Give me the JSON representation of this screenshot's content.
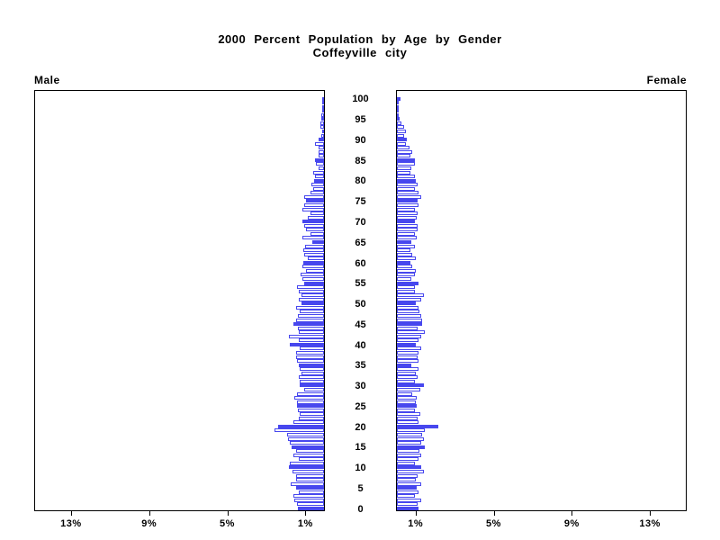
{
  "title": "2000 Percent Population by Age by Gender",
  "subtitle": "Coffeyville city",
  "left_panel_label": "Male",
  "right_panel_label": "Female",
  "colors": {
    "bar_outline": "#4747ee",
    "bar_fill_default": "#ffffff",
    "bar_fill_milestone": "#4747ee",
    "frame": "#000000",
    "text": "#000000",
    "background": "#ffffff"
  },
  "chart_data": {
    "type": "bar",
    "variant": "population-pyramid",
    "title": "2000 Percent Population by Age by Gender",
    "subtitle": "Coffeyville city",
    "orientation": "horizontal-mirrored",
    "unit": "percent of population",
    "age_min": 0,
    "age_max": 100,
    "age_tick_interval": 5,
    "age_tick_values": [
      0,
      5,
      10,
      15,
      20,
      25,
      30,
      35,
      40,
      45,
      50,
      55,
      60,
      65,
      70,
      75,
      80,
      85,
      90,
      95,
      100
    ],
    "x_axis": {
      "tick_values": [
        1,
        5,
        9,
        13
      ],
      "tick_labels": [
        "1%",
        "5%",
        "9%",
        "13%"
      ],
      "axis_max_percent": 14.9,
      "male_axis_direction": "right-to-left",
      "female_axis_direction": "left-to-right"
    },
    "milestone_note": "bars at ages divisible by 5 are solid filled; all others are outlined white",
    "series": [
      {
        "name": "Male",
        "values_by_age_0_to_100": [
          1.35,
          1.4,
          1.5,
          1.55,
          1.3,
          1.45,
          1.7,
          1.45,
          1.45,
          1.6,
          1.8,
          1.75,
          1.3,
          1.55,
          1.45,
          1.65,
          1.75,
          1.85,
          1.9,
          2.55,
          2.35,
          1.55,
          1.3,
          1.25,
          1.35,
          1.4,
          1.4,
          1.5,
          1.4,
          1.0,
          1.25,
          1.25,
          1.3,
          1.15,
          1.25,
          1.3,
          1.4,
          1.45,
          1.45,
          1.25,
          1.75,
          1.3,
          1.8,
          1.3,
          1.35,
          1.55,
          1.45,
          1.35,
          1.25,
          1.45,
          1.15,
          1.3,
          1.15,
          1.3,
          1.4,
          1.0,
          1.1,
          1.2,
          0.9,
          1.1,
          1.05,
          0.85,
          1.0,
          1.05,
          0.95,
          0.6,
          1.1,
          0.7,
          0.9,
          1.0,
          1.1,
          0.85,
          0.7,
          1.1,
          1.0,
          0.9,
          1.0,
          0.7,
          0.55,
          0.65,
          0.5,
          0.45,
          0.55,
          0.3,
          0.4,
          0.45,
          0.3,
          0.3,
          0.3,
          0.45,
          0.3,
          0.15,
          0.1,
          0.2,
          0.18,
          0.12,
          0.15,
          0.05,
          0.08,
          0.02,
          0.05
        ]
      },
      {
        "name": "Female",
        "values_by_age_0_to_100": [
          1.1,
          1.05,
          1.25,
          0.9,
          1.1,
          1.0,
          1.25,
          0.95,
          1.05,
          1.4,
          1.25,
          0.9,
          1.1,
          1.25,
          1.15,
          1.45,
          1.25,
          1.4,
          1.3,
          1.45,
          2.1,
          1.1,
          1.05,
          1.2,
          0.9,
          1.0,
          0.95,
          1.0,
          0.8,
          1.2,
          1.4,
          0.9,
          1.05,
          0.95,
          1.1,
          0.75,
          1.1,
          1.05,
          1.1,
          1.25,
          0.95,
          1.1,
          1.25,
          1.45,
          1.05,
          1.3,
          1.3,
          1.25,
          1.15,
          1.1,
          0.95,
          1.25,
          1.4,
          0.9,
          0.9,
          1.1,
          0.75,
          0.9,
          0.95,
          0.8,
          0.7,
          0.95,
          0.8,
          0.7,
          0.9,
          0.75,
          1.0,
          0.9,
          1.05,
          1.05,
          0.9,
          1.0,
          1.05,
          0.9,
          1.1,
          1.05,
          1.25,
          1.1,
          0.9,
          1.05,
          0.95,
          0.9,
          0.7,
          0.75,
          0.9,
          0.9,
          0.7,
          0.8,
          0.65,
          0.45,
          0.5,
          0.35,
          0.45,
          0.35,
          0.25,
          0.15,
          0.1,
          0.08,
          0.08,
          0.05,
          0.2
        ]
      }
    ]
  }
}
